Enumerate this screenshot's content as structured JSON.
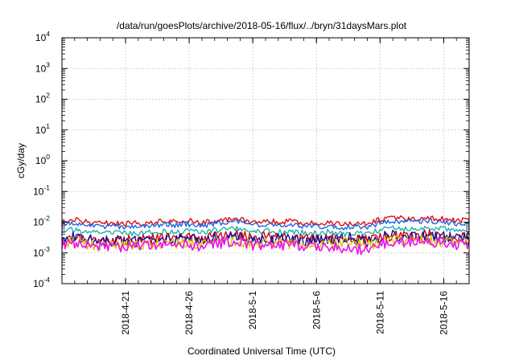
{
  "chart_data": {
    "type": "line",
    "title": "/data/run/goesPlots/archive/2018-05-16/flux/../bryn/31daysMars.plot",
    "xlabel": "Coordinated Universal Time (UTC)",
    "ylabel": "cGy/day",
    "yscale": "log",
    "ylim": [
      0.0001,
      10000
    ],
    "y_ticks": [
      {
        "base": "10",
        "exp": "-4",
        "value": 0.0001
      },
      {
        "base": "10",
        "exp": "-3",
        "value": 0.001
      },
      {
        "base": "10",
        "exp": "-2",
        "value": 0.01
      },
      {
        "base": "10",
        "exp": "-1",
        "value": 0.1
      },
      {
        "base": "10",
        "exp": "0",
        "value": 1
      },
      {
        "base": "10",
        "exp": "1",
        "value": 10
      },
      {
        "base": "10",
        "exp": "2",
        "value": 100
      },
      {
        "base": "10",
        "exp": "3",
        "value": 1000
      },
      {
        "base": "10",
        "exp": "4",
        "value": 10000
      }
    ],
    "xlim": [
      "2018-04-16",
      "2018-05-18"
    ],
    "x_ticks": [
      "2018-4-21",
      "2018-4-26",
      "2018-5-1",
      "2018-5-6",
      "2018-5-11",
      "2018-5-16"
    ],
    "x_tick_dates": [
      "2018-04-21",
      "2018-04-26",
      "2018-05-01",
      "2018-05-06",
      "2018-05-11",
      "2018-05-16"
    ],
    "grid": true,
    "series": [
      {
        "color": "#e01010",
        "level": 0.0105,
        "daily": [
          0.0115,
          0.012,
          0.01,
          0.009,
          0.0095,
          0.0088,
          0.0092,
          0.0095,
          0.0105,
          0.01,
          0.011,
          0.0095,
          0.0115,
          0.0125,
          0.0135,
          0.01,
          0.011,
          0.01,
          0.0105,
          0.0095,
          0.009,
          0.01,
          0.0085,
          0.0085,
          0.009,
          0.012,
          0.0135,
          0.013,
          0.0135,
          0.014,
          0.0125,
          0.0115
        ]
      },
      {
        "color": "#1e64e6",
        "level": 0.0085,
        "daily": [
          0.009,
          0.0095,
          0.008,
          0.0072,
          0.0075,
          0.007,
          0.0073,
          0.0076,
          0.0085,
          0.008,
          0.0088,
          0.0076,
          0.0092,
          0.01,
          0.0108,
          0.008,
          0.0088,
          0.008,
          0.0084,
          0.0076,
          0.0072,
          0.008,
          0.0068,
          0.0068,
          0.0072,
          0.0096,
          0.0108,
          0.0104,
          0.0108,
          0.0112,
          0.01,
          0.0092
        ]
      },
      {
        "color": "#20b2aa",
        "level": 0.005,
        "daily": [
          0.0055,
          0.0058,
          0.0048,
          0.0042,
          0.0045,
          0.0042,
          0.0044,
          0.0046,
          0.005,
          0.0048,
          0.0053,
          0.0046,
          0.0055,
          0.006,
          0.0064,
          0.0048,
          0.0053,
          0.0048,
          0.005,
          0.0046,
          0.0043,
          0.0048,
          0.0041,
          0.0041,
          0.0043,
          0.0057,
          0.0064,
          0.0062,
          0.0064,
          0.0066,
          0.006,
          0.0055
        ]
      },
      {
        "color": "#d00000",
        "level": 0.003,
        "daily": [
          0.0033,
          0.0035,
          0.0029,
          0.0026,
          0.0027,
          0.0025,
          0.0026,
          0.0028,
          0.003,
          0.0029,
          0.0032,
          0.0027,
          0.0033,
          0.0036,
          0.0038,
          0.0029,
          0.0032,
          0.0029,
          0.003,
          0.0027,
          0.0028,
          0.0029,
          0.0025,
          0.0026,
          0.0026,
          0.0034,
          0.0038,
          0.0037,
          0.0038,
          0.004,
          0.0036,
          0.0033
        ]
      },
      {
        "color": "#1010a0",
        "level": 0.0028,
        "daily": [
          0.0031,
          0.0033,
          0.0027,
          0.0024,
          0.0025,
          0.0023,
          0.0024,
          0.0026,
          0.0028,
          0.0027,
          0.003,
          0.0025,
          0.0031,
          0.0034,
          0.0036,
          0.0027,
          0.003,
          0.0027,
          0.0028,
          0.0025,
          0.0026,
          0.0027,
          0.003,
          0.0032,
          0.0024,
          0.0032,
          0.0036,
          0.0035,
          0.0036,
          0.0038,
          0.0034,
          0.0031
        ]
      },
      {
        "color": "#d4c800",
        "level": 0.002,
        "daily": [
          0.0022,
          0.0023,
          0.0019,
          0.0017,
          0.0018,
          0.0017,
          0.0018,
          0.0019,
          0.002,
          0.0019,
          0.0021,
          0.0018,
          0.0022,
          0.0024,
          0.0025,
          0.0019,
          0.0021,
          0.0019,
          0.002,
          0.0018,
          0.0017,
          0.0019,
          0.0023,
          0.0025,
          0.0017,
          0.0023,
          0.0025,
          0.0024,
          0.0025,
          0.0026,
          0.0024,
          0.0022
        ]
      },
      {
        "color": "#ee10ee",
        "level": 0.0018,
        "daily": [
          0.0019,
          0.002,
          0.0017,
          0.0015,
          0.0016,
          0.0015,
          0.0016,
          0.0017,
          0.0018,
          0.0017,
          0.0019,
          0.0016,
          0.002,
          0.0022,
          0.0023,
          0.0016,
          0.0019,
          0.0017,
          0.0018,
          0.0016,
          0.0015,
          0.0017,
          0.0013,
          0.0013,
          0.0014,
          0.002,
          0.0023,
          0.0022,
          0.0023,
          0.0024,
          0.0021,
          0.0019
        ]
      }
    ]
  }
}
